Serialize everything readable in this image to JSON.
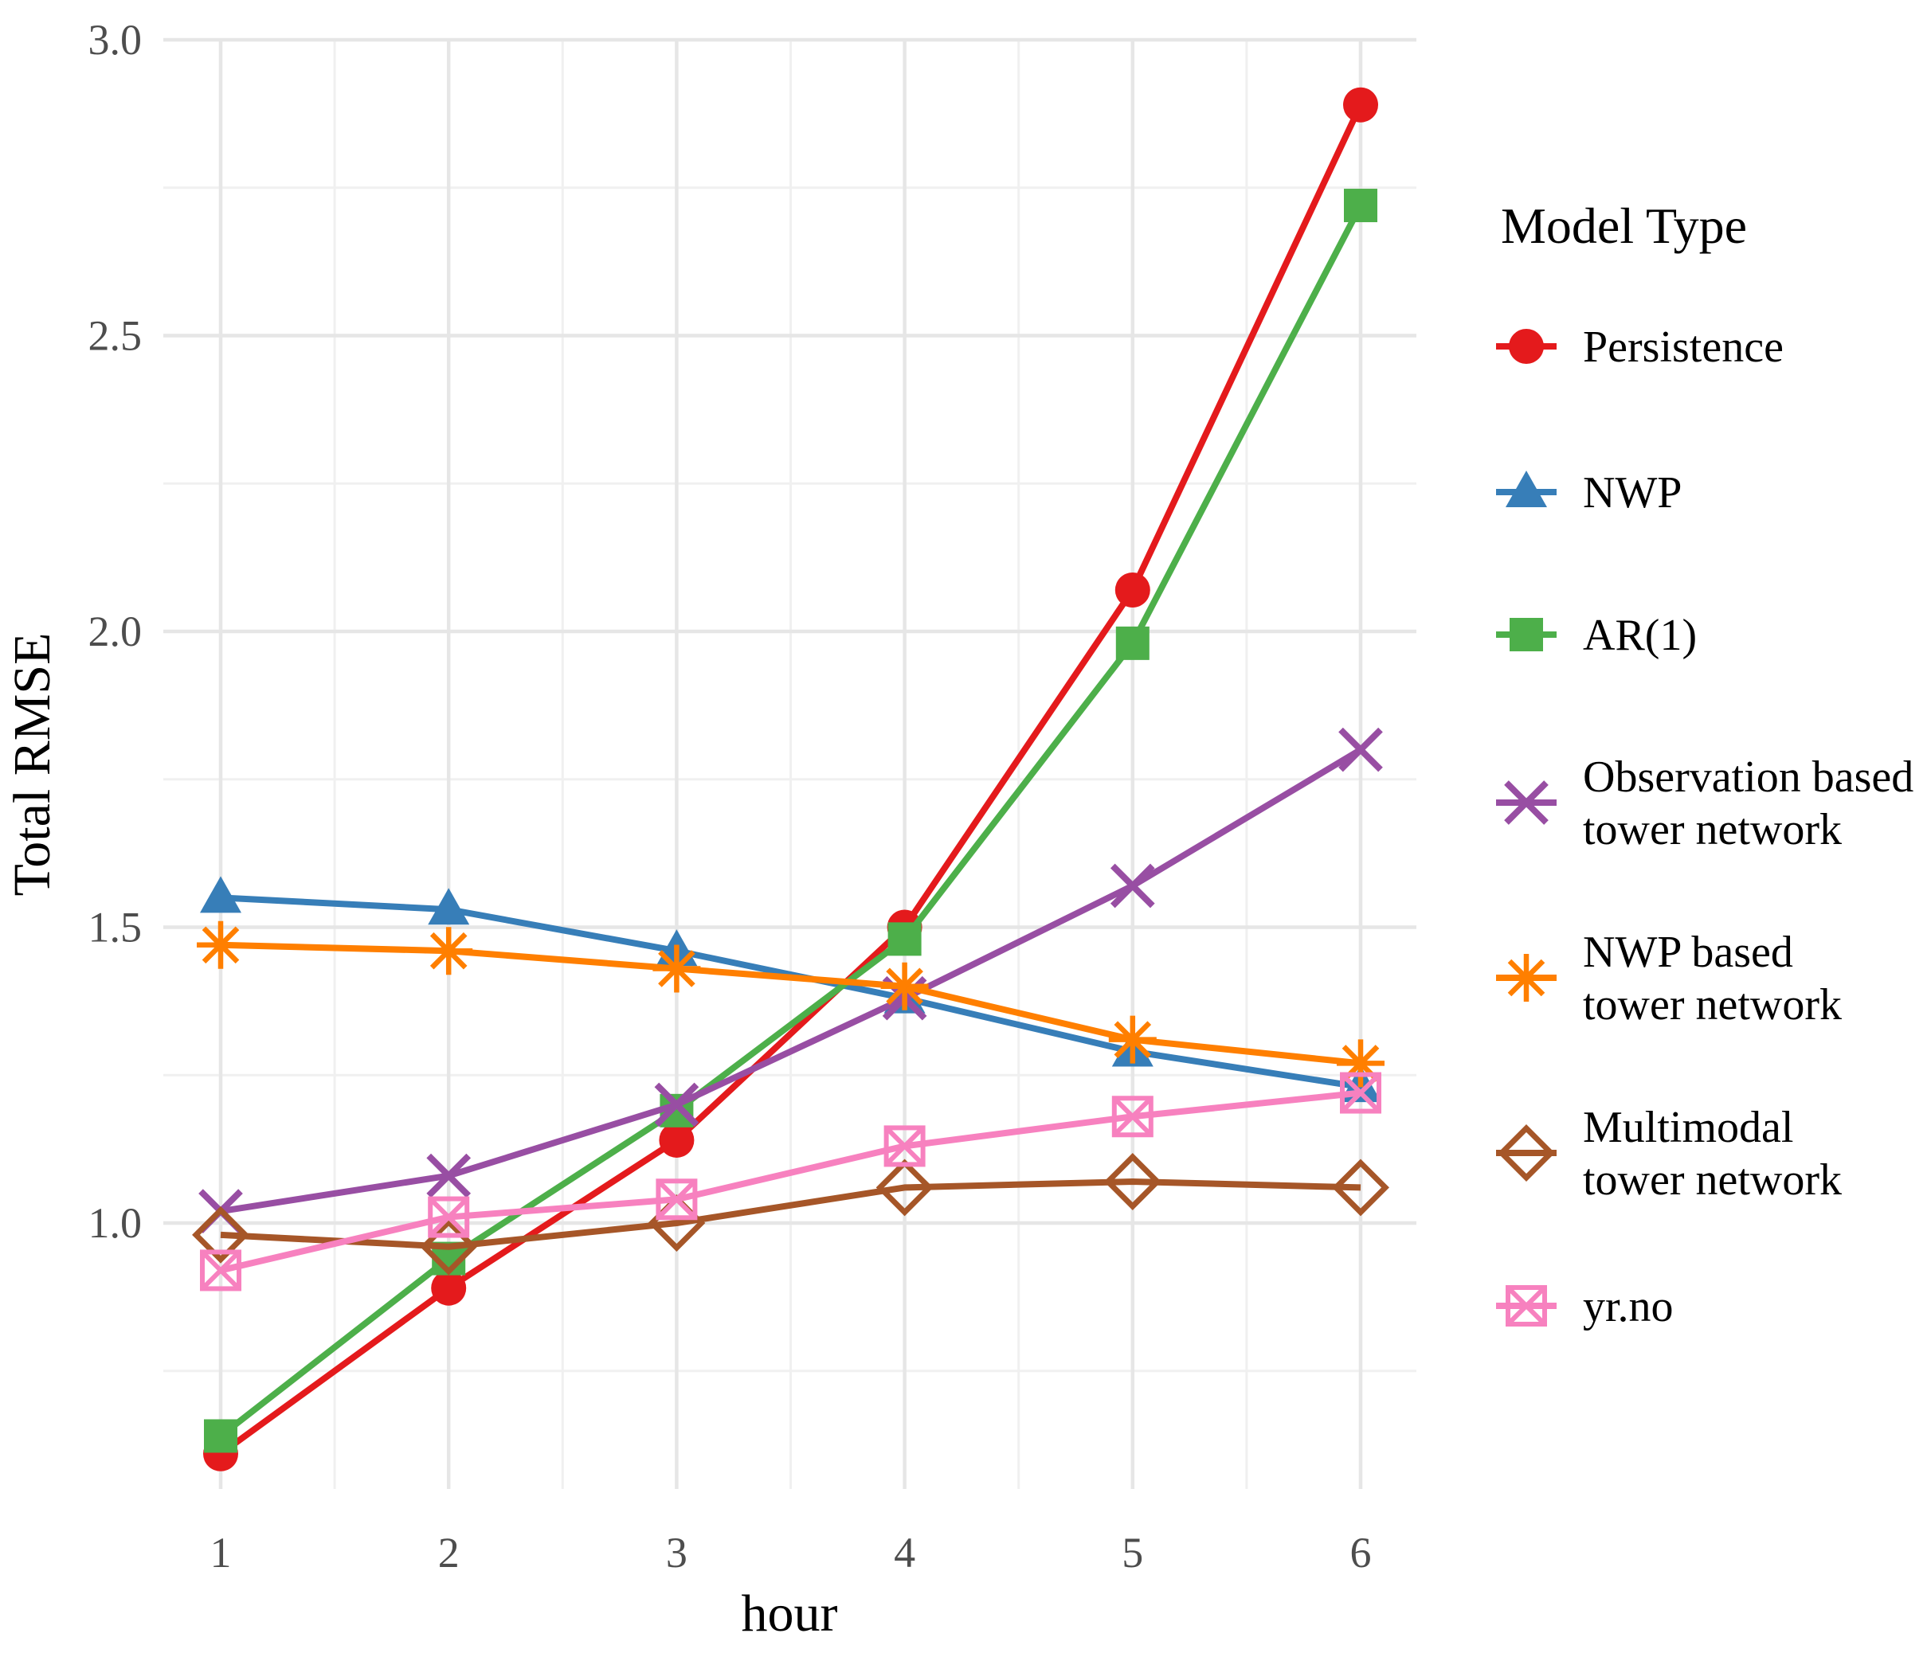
{
  "chart_data": {
    "type": "line",
    "title": "",
    "xlabel": "hour",
    "ylabel": "Total RMSE",
    "legend_title": "Model Type",
    "legend_position": "right",
    "grid": true,
    "x": [
      1,
      2,
      3,
      4,
      5,
      6
    ],
    "x_major_ticks": [
      1,
      2,
      3,
      4,
      5,
      6
    ],
    "x_tick_labels": [
      "1",
      "2",
      "3",
      "4",
      "5",
      "6"
    ],
    "x_minor_ticks": [
      1.5,
      2.5,
      3.5,
      4.5,
      5.5
    ],
    "xlim": [
      0.75,
      6.25
    ],
    "y_major_ticks": [
      1.0,
      1.5,
      2.0,
      2.5,
      3.0
    ],
    "y_tick_labels": [
      "1.0",
      "1.5",
      "2.0",
      "2.5",
      "3.0"
    ],
    "y_minor_ticks": [
      0.75,
      1.25,
      1.75,
      2.25,
      2.75
    ],
    "ylim": [
      0.55,
      3.0
    ],
    "series": [
      {
        "name": "Persistence",
        "label_lines": [
          "Persistence"
        ],
        "marker": "circle",
        "color": "#e41a1c",
        "values": [
          0.61,
          0.89,
          1.14,
          1.5,
          2.07,
          2.89
        ]
      },
      {
        "name": "NWP",
        "label_lines": [
          "NWP"
        ],
        "marker": "triangle",
        "color": "#377eb8",
        "values": [
          1.55,
          1.53,
          1.46,
          1.38,
          1.29,
          1.23
        ]
      },
      {
        "name": "AR(1)",
        "label_lines": [
          "AR(1)"
        ],
        "marker": "square",
        "color": "#4daf4a",
        "values": [
          0.64,
          0.94,
          1.19,
          1.48,
          1.98,
          2.72
        ]
      },
      {
        "name": "Observation based tower network",
        "label_lines": [
          "Observation based",
          "tower network"
        ],
        "marker": "x-cross",
        "color": "#984ea3",
        "values": [
          1.02,
          1.08,
          1.2,
          1.38,
          1.57,
          1.8
        ]
      },
      {
        "name": "NWP based tower network",
        "label_lines": [
          "NWP based",
          "tower network"
        ],
        "marker": "asterisk",
        "color": "#ff7f00",
        "values": [
          1.47,
          1.46,
          1.43,
          1.4,
          1.31,
          1.27
        ]
      },
      {
        "name": "Multimodal tower network",
        "label_lines": [
          "Multimodal",
          "tower network"
        ],
        "marker": "diamond-open",
        "color": "#a65628",
        "values": [
          0.98,
          0.96,
          1.0,
          1.06,
          1.07,
          1.06
        ]
      },
      {
        "name": "yr.no",
        "label_lines": [
          "yr.no"
        ],
        "marker": "square-x",
        "color": "#f781bf",
        "values": [
          0.92,
          1.01,
          1.04,
          1.13,
          1.18,
          1.22
        ]
      }
    ],
    "colors": {
      "background": "#ffffff",
      "grid_major": "#e6e6e6",
      "grid_minor": "#f0f0f0",
      "tick_text": "#4d4d4d",
      "axis_title_text": "#000000"
    }
  }
}
